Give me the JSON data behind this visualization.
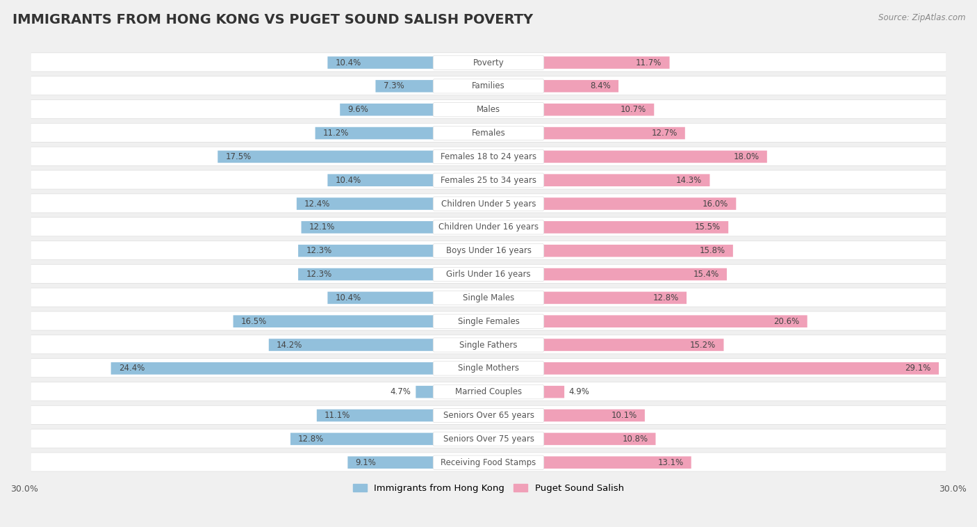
{
  "title": "IMMIGRANTS FROM HONG KONG VS PUGET SOUND SALISH POVERTY",
  "source": "Source: ZipAtlas.com",
  "categories": [
    "Poverty",
    "Families",
    "Males",
    "Females",
    "Females 18 to 24 years",
    "Females 25 to 34 years",
    "Children Under 5 years",
    "Children Under 16 years",
    "Boys Under 16 years",
    "Girls Under 16 years",
    "Single Males",
    "Single Females",
    "Single Fathers",
    "Single Mothers",
    "Married Couples",
    "Seniors Over 65 years",
    "Seniors Over 75 years",
    "Receiving Food Stamps"
  ],
  "left_values": [
    10.4,
    7.3,
    9.6,
    11.2,
    17.5,
    10.4,
    12.4,
    12.1,
    12.3,
    12.3,
    10.4,
    16.5,
    14.2,
    24.4,
    4.7,
    11.1,
    12.8,
    9.1
  ],
  "right_values": [
    11.7,
    8.4,
    10.7,
    12.7,
    18.0,
    14.3,
    16.0,
    15.5,
    15.8,
    15.4,
    12.8,
    20.6,
    15.2,
    29.1,
    4.9,
    10.1,
    10.8,
    13.1
  ],
  "left_color": "#92c0dc",
  "right_color": "#f0a0b8",
  "left_label": "Immigrants from Hong Kong",
  "right_label": "Puget Sound Salish",
  "axis_max": 30.0,
  "bg_color": "#f0f0f0",
  "row_bg_color": "#ffffff",
  "row_border_color": "#dddddd",
  "title_fontsize": 14,
  "label_fontsize": 8.5,
  "value_fontsize": 8.5,
  "source_fontsize": 8.5
}
